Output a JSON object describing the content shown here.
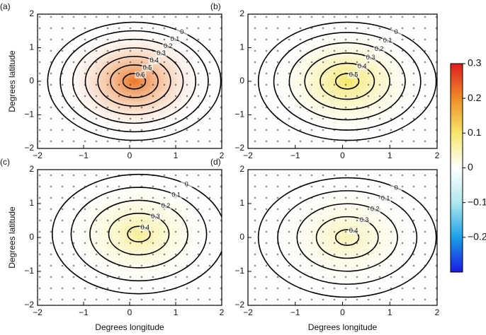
{
  "chart_data": [
    {
      "type": "contour",
      "label": "(a)",
      "ylabel": "Degrees latitude",
      "xlim": [
        -2,
        2
      ],
      "ylim": [
        -2,
        2
      ],
      "xticks": [
        {
          "value": -2,
          "label": "−2"
        },
        {
          "value": -1,
          "label": "−1"
        },
        0,
        1,
        2
      ],
      "yticks": [
        {
          "value": -2,
          "label": "−2"
        },
        {
          "value": -1,
          "label": "−1"
        },
        0,
        1,
        2
      ],
      "levels": [
        0,
        0.1,
        0.2,
        0.3,
        0.4,
        0.5,
        0.6
      ],
      "peak": {
        "x": 0.1,
        "y": 0,
        "value": 0.22
      }
    },
    {
      "type": "contour",
      "label": "(b)",
      "xlim": [
        -2,
        2
      ],
      "ylim": [
        -2,
        2
      ],
      "xticks": [
        {
          "value": -2,
          "label": "−2"
        },
        {
          "value": -1,
          "label": "−1"
        },
        0,
        1,
        2
      ],
      "yticks": [
        {
          "value": -2,
          "label": "−2"
        },
        {
          "value": -1,
          "label": "−1"
        },
        0,
        1,
        2
      ],
      "levels": [
        0,
        0.1,
        0.2,
        0.3,
        0.4,
        0.5
      ],
      "peak": {
        "x": 0.1,
        "y": 0,
        "value": 0.1
      }
    },
    {
      "type": "contour",
      "label": "(c)",
      "xlabel": "Degrees longitude",
      "ylabel": "Degrees latitude",
      "xlim": [
        -2,
        2
      ],
      "ylim": [
        -2,
        2
      ],
      "xticks": [
        {
          "value": -2,
          "label": "−2"
        },
        {
          "value": -1,
          "label": "−1"
        },
        0,
        1,
        2
      ],
      "yticks": [
        {
          "value": -2,
          "label": "−2"
        },
        {
          "value": -1,
          "label": "−1"
        },
        0,
        1,
        2
      ],
      "levels": [
        0,
        0.1,
        0.2,
        0.3,
        0.4
      ],
      "peak": {
        "x": 0.2,
        "y": 0.1,
        "value": 0.07
      }
    },
    {
      "type": "contour",
      "label": "(d)",
      "xlabel": "Degrees longitude",
      "xlim": [
        -2,
        2
      ],
      "ylim": [
        -2,
        2
      ],
      "xticks": [
        {
          "value": -2,
          "label": "−2"
        },
        {
          "value": -1,
          "label": "−1"
        },
        0,
        1,
        2
      ],
      "yticks": [
        {
          "value": -2,
          "label": "−2"
        },
        {
          "value": -1,
          "label": "−1"
        },
        0,
        1,
        2
      ],
      "levels": [
        0,
        0.1,
        0.2,
        0.3,
        0.4
      ],
      "peak": {
        "x": 0.1,
        "y": 0,
        "value": 0.05
      }
    },
    {
      "type": "colorbar",
      "clim": [
        -0.3,
        0.3
      ],
      "ticks": [
        0.3,
        0.2,
        0.1,
        0,
        {
          "value": -0.1,
          "label": "−0.1"
        },
        {
          "value": -0.2,
          "label": "−0.2"
        }
      ],
      "colors": [
        "#1a1ae6",
        "#1aa0e6",
        "#aee8f0",
        "#ffffff",
        "#f5e66a",
        "#f08c28",
        "#dc1e1e"
      ]
    }
  ]
}
